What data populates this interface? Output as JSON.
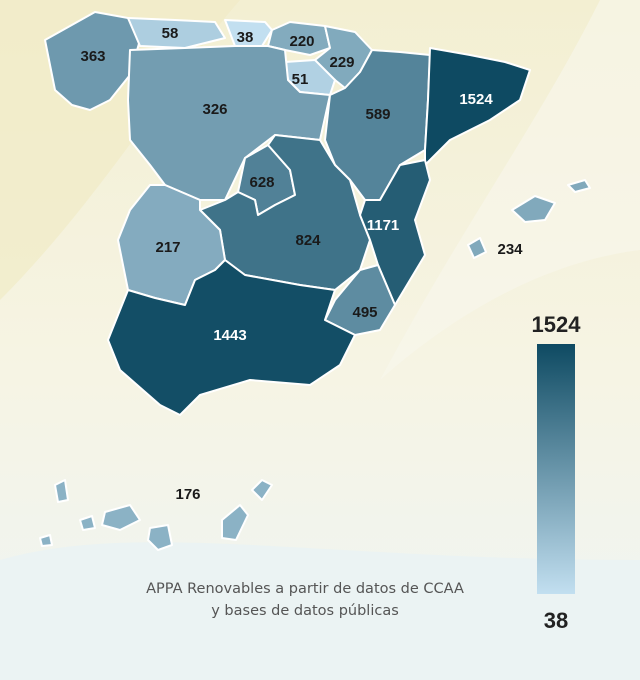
{
  "colors": {
    "min": "#c2dff0",
    "max": "#0e4a62",
    "background_top": "#f5f3de",
    "background_bottom": "#eef5f4"
  },
  "regions": [
    {
      "name": "Galicia",
      "value": 363
    },
    {
      "name": "Asturias",
      "value": 58
    },
    {
      "name": "Cantabria",
      "value": 38
    },
    {
      "name": "País Vasco",
      "value": 220
    },
    {
      "name": "Navarra",
      "value": 229
    },
    {
      "name": "La Rioja",
      "value": 51
    },
    {
      "name": "Castilla y León",
      "value": 326
    },
    {
      "name": "Aragón",
      "value": 589
    },
    {
      "name": "Cataluña",
      "value": 1524
    },
    {
      "name": "Comunidad de Madrid",
      "value": 628
    },
    {
      "name": "Castilla-La Mancha",
      "value": 824
    },
    {
      "name": "Comunidad Valenciana",
      "value": 1171
    },
    {
      "name": "Extremadura",
      "value": 217
    },
    {
      "name": "Región de Murcia",
      "value": 495
    },
    {
      "name": "Andalucía",
      "value": 1443
    },
    {
      "name": "Islas Baleares",
      "value": 234
    },
    {
      "name": "Canarias",
      "value": 176
    }
  ],
  "legend": {
    "max": "1524",
    "min": "38"
  },
  "source": {
    "line1": "APPA Renovables a partir de datos de CCAA",
    "line2": "y bases de datos públicas"
  }
}
